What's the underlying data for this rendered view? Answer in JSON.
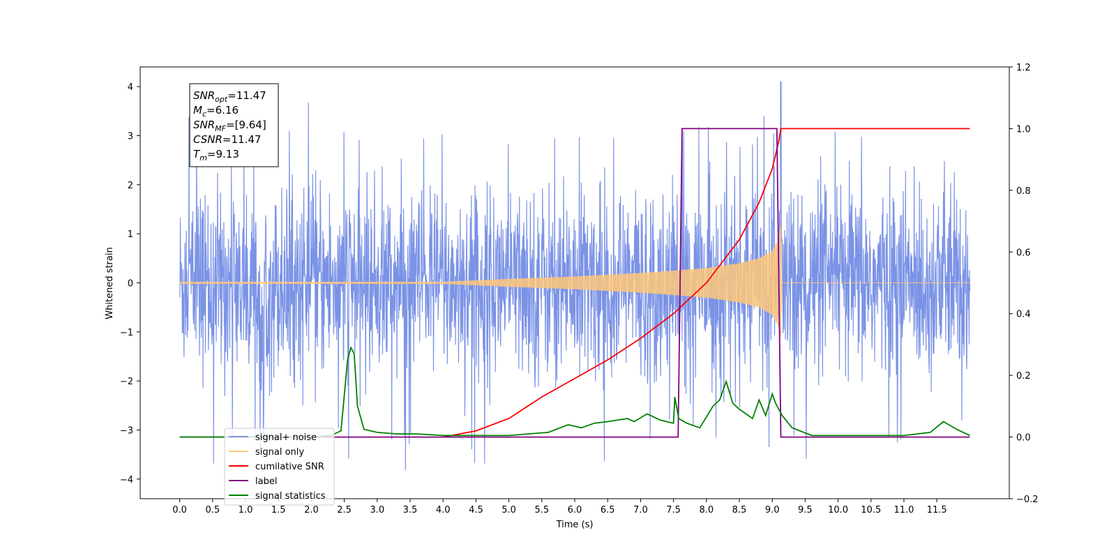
{
  "chart_data": {
    "type": "line",
    "xlabel": "Time (s)",
    "ylabel": "Whitened strain",
    "xlim": [
      -0.6,
      12.6
    ],
    "ylim": [
      -4.4,
      4.4
    ],
    "y2lim": [
      -0.2,
      1.2
    ],
    "x_ticks": [
      "0.0",
      "0.5",
      "1.0",
      "1.5",
      "2.0",
      "2.5",
      "3.0",
      "3.5",
      "4.0",
      "4.5",
      "5.0",
      "5.5",
      "6.0",
      "6.5",
      "7.0",
      "7.5",
      "8.0",
      "8.5",
      "9.0",
      "9.5",
      "10.0",
      "10.5",
      "11.0",
      "11.5"
    ],
    "y_ticks": [
      "4",
      "3",
      "2",
      "1",
      "0",
      "−1",
      "−2",
      "−3",
      "−4"
    ],
    "y2_ticks": [
      "1.2",
      "1.0",
      "0.8",
      "0.6",
      "0.4",
      "0.2",
      "0.0",
      "−0.2"
    ],
    "annotation": {
      "lines": [
        {
          "name": "SNR",
          "sub": "opt",
          "value": "=11.47"
        },
        {
          "name": "M",
          "sub": "c",
          "value": "=6.16"
        },
        {
          "name": "SNR",
          "sub": "MF",
          "value": "=[9.64]"
        },
        {
          "name": "CSNR",
          "sub": "",
          "value": "=11.47"
        },
        {
          "name": "T",
          "sub": "m",
          "value": "=9.13"
        }
      ]
    },
    "legend": {
      "placement": "lower-left",
      "entries": [
        {
          "label": "signal+ noise",
          "color": "#7b93e6"
        },
        {
          "label": "signal only",
          "color": "#ffc77a"
        },
        {
          "label": "cumilative SNR",
          "color": "#ff0000"
        },
        {
          "label": "label",
          "color": "#800080"
        },
        {
          "label": "signal statistics",
          "color": "#008000"
        }
      ]
    },
    "series": [
      {
        "name": "signal+ noise",
        "axis": "left",
        "color": "#7b93e6",
        "style": "gaussian whitened noise spanning x 0.0–12.0, typical amplitude ±2, peaks near ±3.8 (max 4.1 at x≈9.13)"
      },
      {
        "name": "signal only",
        "axis": "left",
        "color": "#ffc77a",
        "style": "chirp envelope, flat near 0 until x≈4.0, growing to ±1.2 at x≈9.13, then 0",
        "envelope": {
          "x": [
            4.0,
            5.0,
            6.0,
            7.0,
            7.5,
            8.0,
            8.5,
            8.8,
            9.0,
            9.1,
            9.13,
            9.15
          ],
          "y": [
            0.02,
            0.08,
            0.13,
            0.2,
            0.25,
            0.3,
            0.4,
            0.5,
            0.65,
            0.9,
            1.2,
            0.0
          ]
        }
      },
      {
        "name": "cumilative SNR",
        "axis": "right",
        "color": "#ff0000",
        "x": [
          4.0,
          4.5,
          5.0,
          5.5,
          6.0,
          6.5,
          7.0,
          7.5,
          8.0,
          8.5,
          8.8,
          9.0,
          9.1,
          9.13,
          9.5,
          10.0,
          11.0,
          12.0
        ],
        "y": [
          0.0,
          0.02,
          0.06,
          0.13,
          0.19,
          0.25,
          0.32,
          0.4,
          0.5,
          0.64,
          0.76,
          0.87,
          0.96,
          1.0,
          1.0,
          1.0,
          1.0,
          1.0
        ]
      },
      {
        "name": "label",
        "axis": "right",
        "color": "#800080",
        "x": [
          0.0,
          7.57,
          7.63,
          9.07,
          9.13,
          12.0
        ],
        "y": [
          0.0,
          0.0,
          1.0,
          1.0,
          0.0,
          0.0
        ]
      },
      {
        "name": "signal statistics",
        "axis": "right",
        "color": "#008000",
        "x": [
          0.0,
          2.0,
          2.3,
          2.45,
          2.55,
          2.6,
          2.65,
          2.7,
          2.8,
          3.0,
          3.3,
          3.6,
          4.0,
          4.5,
          5.0,
          5.3,
          5.6,
          5.9,
          6.1,
          6.3,
          6.5,
          6.8,
          6.9,
          7.1,
          7.3,
          7.5,
          7.52,
          7.58,
          7.7,
          7.9,
          8.1,
          8.2,
          8.3,
          8.4,
          8.5,
          8.7,
          8.8,
          8.9,
          9.0,
          9.05,
          9.15,
          9.3,
          9.6,
          10.0,
          11.0,
          11.4,
          11.6,
          11.8,
          12.0
        ],
        "y": [
          0.0,
          0.0,
          0.005,
          0.02,
          0.25,
          0.29,
          0.27,
          0.1,
          0.025,
          0.015,
          0.01,
          0.01,
          0.005,
          0.005,
          0.005,
          0.01,
          0.015,
          0.04,
          0.03,
          0.045,
          0.05,
          0.06,
          0.05,
          0.075,
          0.055,
          0.045,
          0.13,
          0.06,
          0.045,
          0.03,
          0.1,
          0.12,
          0.18,
          0.11,
          0.09,
          0.06,
          0.12,
          0.07,
          0.14,
          0.11,
          0.07,
          0.03,
          0.005,
          0.005,
          0.005,
          0.015,
          0.05,
          0.025,
          0.005
        ]
      }
    ]
  }
}
